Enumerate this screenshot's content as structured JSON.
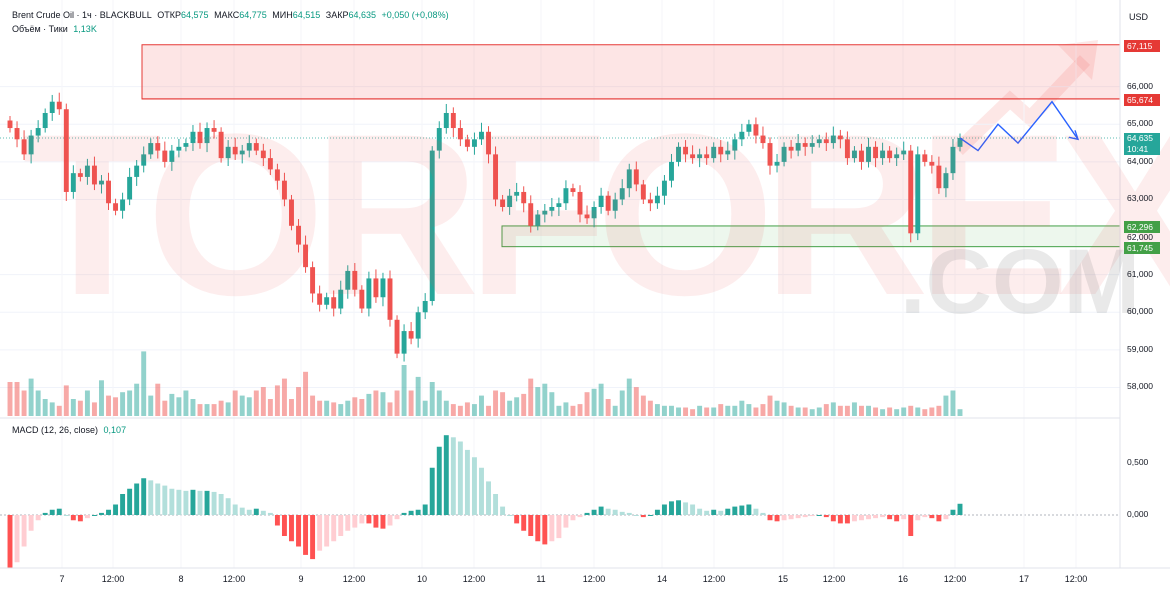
{
  "header": {
    "symbol": "Brent Crude Oil · 1ч · BLACKBULL",
    "open_label": "ОТКР",
    "open": "64,575",
    "high_label": "МАКС",
    "high": "64,775",
    "low_label": "МИН",
    "low": "64,515",
    "close_label": "ЗАКР",
    "close": "64,635",
    "change": "+0,050 (+0,08%)",
    "volume_label": "Объём · Тики",
    "volume": "1,13K",
    "macd_label": "MACD (12, 26, close)",
    "macd_value": "0,107"
  },
  "currency": "USD",
  "watermark": {
    "text": "TORFOREX",
    "suffix": ".COM"
  },
  "price_tags": {
    "resistance_top": "67,115",
    "resistance_bottom": "65,674",
    "current_price": "64,635",
    "countdown": "10:41",
    "support_top": "62,296",
    "support_mid": "62,000",
    "support_bottom": "61,745"
  },
  "colors": {
    "up": "#26a69a",
    "down": "#ef5350",
    "resistance": "#e53935",
    "support": "#43a047",
    "forecast": "#2962ff"
  },
  "chart_data": {
    "type": "candlestick",
    "price_ticks": [
      "58,000",
      "59,000",
      "60,000",
      "61,000",
      "63,000",
      "64,000",
      "65,000",
      "66,000"
    ],
    "price_range": [
      57.3,
      67.6
    ],
    "macd_ticks": [
      "0,500",
      "0,000"
    ],
    "time_ticks": [
      "7",
      "12:00",
      "8",
      "12:00",
      "9",
      "12:00",
      "10",
      "12:00",
      "11",
      "12:00",
      "14",
      "12:00",
      "15",
      "12:00",
      "16",
      "12:00",
      "17",
      "12:00"
    ],
    "closes": [
      64.9,
      64.6,
      64.2,
      64.7,
      64.9,
      65.3,
      65.6,
      65.4,
      63.2,
      63.7,
      63.6,
      63.9,
      63.4,
      63.5,
      62.9,
      62.7,
      63.0,
      63.6,
      63.9,
      64.2,
      64.5,
      64.3,
      64.0,
      64.3,
      64.4,
      64.5,
      64.8,
      64.5,
      64.9,
      64.8,
      64.1,
      64.4,
      64.2,
      64.3,
      64.5,
      64.3,
      64.1,
      63.8,
      63.5,
      63.0,
      62.3,
      61.8,
      61.2,
      60.5,
      60.2,
      60.4,
      60.1,
      60.6,
      61.1,
      60.6,
      60.1,
      60.9,
      60.4,
      60.9,
      59.8,
      58.9,
      59.5,
      59.3,
      60.0,
      60.3,
      64.3,
      64.9,
      65.3,
      64.9,
      64.6,
      64.4,
      64.6,
      64.8,
      64.2,
      63.0,
      62.8,
      63.1,
      63.2,
      62.9,
      62.3,
      62.6,
      62.7,
      62.8,
      62.9,
      63.3,
      63.2,
      62.6,
      62.5,
      62.8,
      63.1,
      62.7,
      63.0,
      63.3,
      63.8,
      63.4,
      63.0,
      62.9,
      63.1,
      63.5,
      64.0,
      64.4,
      64.2,
      64.1,
      64.2,
      64.1,
      64.4,
      64.2,
      64.3,
      64.6,
      64.8,
      65.0,
      64.7,
      64.5,
      63.9,
      64.0,
      64.4,
      64.3,
      64.5,
      64.4,
      64.5,
      64.6,
      64.5,
      64.7,
      64.6,
      64.1,
      64.3,
      64.0,
      64.4,
      64.1,
      64.3,
      64.1,
      64.2,
      64.3,
      62.1,
      64.2,
      64.0,
      63.9,
      63.3,
      63.7,
      64.4,
      64.635
    ],
    "volumes": [
      2,
      2,
      1.5,
      2.2,
      1.5,
      1,
      0.8,
      0.6,
      1.8,
      1,
      0.9,
      1.5,
      0.8,
      2.1,
      1.2,
      1.1,
      1.4,
      1.5,
      1.9,
      3.8,
      1.2,
      1.9,
      0.9,
      1.3,
      1.1,
      1.5,
      1,
      0.7,
      0.7,
      0.7,
      0.9,
      0.8,
      1.5,
      1.2,
      1.1,
      1.5,
      1.7,
      1,
      1.8,
      2.2,
      1,
      1.7,
      2.6,
      1.2,
      0.9,
      0.9,
      0.8,
      0.7,
      0.9,
      1.1,
      1,
      1.3,
      1.5,
      1.4,
      0.8,
      1.5,
      3,
      1.5,
      2.3,
      0.9,
      2,
      1.5,
      0.9,
      0.7,
      0.6,
      0.8,
      0.7,
      1.2,
      0.6,
      1.5,
      1.4,
      0.9,
      1.1,
      1.3,
      2.2,
      1.7,
      1.9,
      1.4,
      0.6,
      0.8,
      0.6,
      0.7,
      1.4,
      1.6,
      1.9,
      1,
      0.6,
      1.5,
      2.2,
      1.7,
      1.2,
      0.9,
      0.7,
      0.6,
      0.6,
      0.5,
      0.5,
      0.4,
      0.6,
      0.5,
      0.5,
      0.7,
      0.6,
      0.6,
      0.9,
      0.7,
      0.5,
      0.7,
      1.2,
      0.9,
      0.8,
      0.6,
      0.5,
      0.5,
      0.4,
      0.5,
      0.7,
      0.8,
      0.6,
      0.6,
      0.8,
      0.6,
      0.6,
      0.5,
      0.4,
      0.5,
      0.4,
      0.5,
      0.6,
      0.5,
      0.4,
      0.5,
      0.6,
      1.2,
      1.5,
      0.4
    ],
    "macd": [
      -0.5,
      -0.45,
      -0.3,
      -0.15,
      -0.05,
      0.02,
      0.05,
      0.06,
      0.0,
      -0.05,
      -0.06,
      -0.03,
      0.0,
      0.02,
      0.05,
      0.1,
      0.2,
      0.25,
      0.3,
      0.35,
      0.33,
      0.3,
      0.28,
      0.25,
      0.24,
      0.23,
      0.24,
      0.23,
      0.23,
      0.22,
      0.2,
      0.16,
      0.1,
      0.07,
      0.05,
      0.06,
      0.04,
      0.02,
      -0.1,
      -0.2,
      -0.25,
      -0.3,
      -0.38,
      -0.42,
      -0.34,
      -0.3,
      -0.25,
      -0.2,
      -0.15,
      -0.12,
      -0.08,
      -0.08,
      -0.12,
      -0.13,
      -0.1,
      -0.04,
      0.02,
      0.04,
      0.05,
      0.1,
      0.45,
      0.65,
      0.76,
      0.74,
      0.7,
      0.62,
      0.55,
      0.45,
      0.32,
      0.2,
      0.08,
      0.0,
      -0.08,
      -0.15,
      -0.2,
      -0.25,
      -0.28,
      -0.25,
      -0.22,
      -0.12,
      -0.05,
      -0.02,
      0.02,
      0.05,
      0.08,
      0.06,
      0.05,
      0.03,
      0.02,
      0.0,
      -0.02,
      0.0,
      0.05,
      0.1,
      0.13,
      0.14,
      0.12,
      0.1,
      0.06,
      0.04,
      0.05,
      0.04,
      0.06,
      0.08,
      0.09,
      0.1,
      0.06,
      0.02,
      -0.05,
      -0.06,
      -0.05,
      -0.04,
      -0.03,
      -0.02,
      -0.01,
      0.0,
      -0.02,
      -0.06,
      -0.08,
      -0.08,
      -0.06,
      -0.05,
      -0.04,
      -0.03,
      -0.02,
      -0.04,
      -0.06,
      -0.04,
      -0.2,
      -0.05,
      -0.02,
      -0.03,
      -0.06,
      -0.04,
      0.05,
      0.107
    ],
    "resistance_zone": [
      65.674,
      67.115
    ],
    "support_zone": [
      61.745,
      62.296
    ],
    "forecast": [
      64.635,
      64.3,
      65.0,
      64.5,
      65.6,
      64.6
    ]
  }
}
